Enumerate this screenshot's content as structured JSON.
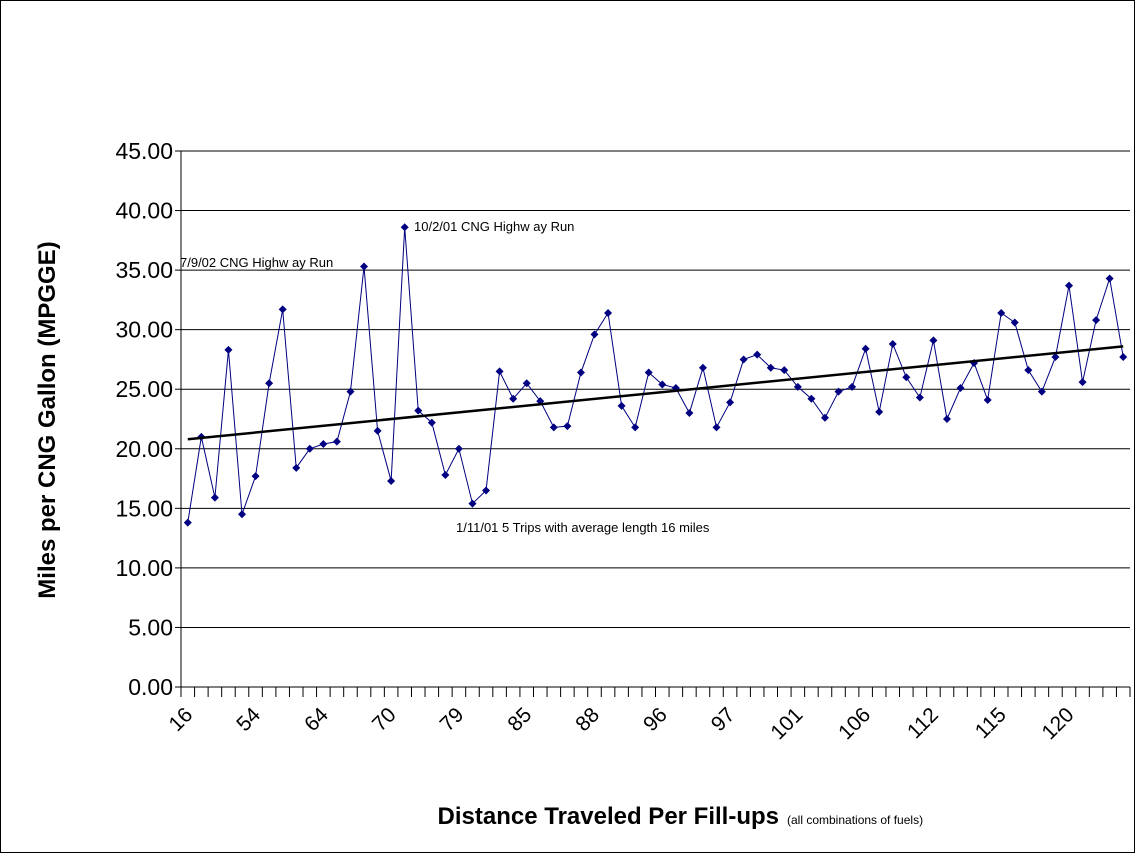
{
  "chart_data": {
    "type": "line",
    "y_label": "Miles per CNG Gallon (MPGGE)",
    "x_label": "Distance Traveled Per Fill-ups",
    "x_label_note": "(all combinations of fuels)",
    "categories": [
      "16",
      null,
      null,
      null,
      null,
      "54",
      null,
      null,
      null,
      null,
      "64",
      null,
      null,
      null,
      null,
      "70",
      null,
      null,
      null,
      null,
      "79",
      null,
      null,
      null,
      null,
      "85",
      null,
      null,
      null,
      null,
      "88",
      null,
      null,
      null,
      null,
      "96",
      null,
      null,
      null,
      null,
      "97",
      null,
      null,
      null,
      null,
      "101",
      null,
      null,
      null,
      null,
      "106",
      null,
      null,
      null,
      null,
      "112",
      null,
      null,
      null,
      null,
      "115",
      null,
      null,
      null,
      null,
      "120",
      null,
      null,
      null,
      null
    ],
    "series": [
      {
        "color": "#000080",
        "values": [
          13.8,
          21.0,
          15.9,
          28.3,
          14.5,
          17.7,
          25.5,
          31.7,
          18.4,
          20.0,
          20.4,
          20.6,
          24.8,
          35.3,
          21.5,
          17.3,
          38.6,
          23.2,
          22.2,
          17.8,
          20.0,
          15.4,
          16.5,
          26.5,
          24.2,
          25.5,
          24.0,
          21.8,
          21.9,
          26.4,
          29.6,
          31.4,
          23.6,
          21.8,
          26.4,
          25.4,
          25.1,
          23.0,
          26.8,
          21.8,
          23.9,
          27.5,
          27.9,
          26.8,
          26.6,
          25.2,
          24.2,
          22.6,
          24.8,
          25.2,
          28.4,
          23.1,
          28.8,
          26.0,
          24.3,
          29.1,
          22.5,
          25.1,
          27.2,
          24.1,
          31.4,
          30.6,
          26.6,
          24.8,
          27.7,
          33.7,
          25.6,
          30.8,
          34.3,
          27.7
        ]
      }
    ],
    "trendline": {
      "color": "#000000",
      "values": [
        20.8,
        28.6
      ]
    },
    "annotations": [
      "10/2/01 CNG Highw ay Run",
      "7/9/02 CNG Highw ay Run",
      "1/11/01 5 Trips with average length 16 miles"
    ],
    "ylim": [
      0,
      45
    ],
    "yticks": [
      {
        "value": 0,
        "label": "0.00"
      },
      {
        "value": 5,
        "label": "5.00"
      },
      {
        "value": 10,
        "label": "10.00"
      },
      {
        "value": 15,
        "label": "15.00"
      },
      {
        "value": 20,
        "label": "20.00"
      },
      {
        "value": 25,
        "label": "25.00"
      },
      {
        "value": 30,
        "label": "30.00"
      },
      {
        "value": 35,
        "label": "35.00"
      },
      {
        "value": 40,
        "label": "40.00"
      },
      {
        "value": 45,
        "label": "45.00"
      }
    ],
    "grid": true
  }
}
